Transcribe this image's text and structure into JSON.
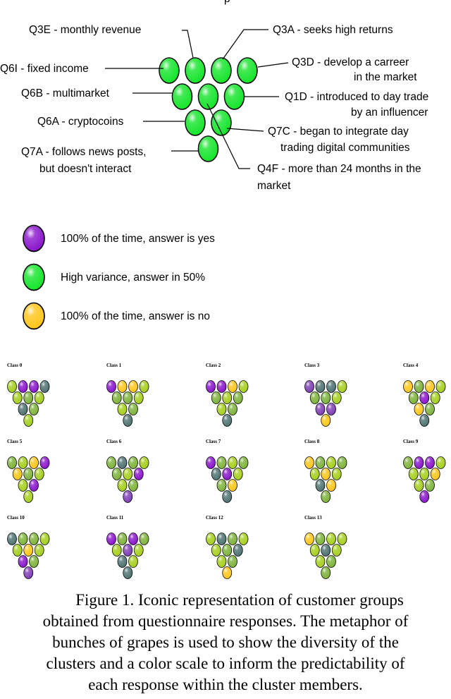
{
  "colors": {
    "purple": "#8b16cc",
    "violet": "#7f3fb6",
    "green": "#16e52c",
    "lime": "#a5cf1d",
    "olive": "#7eb33a",
    "slate": "#4f7373",
    "yellow": "#ffc61a",
    "outline": "#000000"
  },
  "header_fragment": "p",
  "questions": {
    "q3e": "Q3E - monthly revenue",
    "q3a": "Q3A - seeks high returns",
    "q6i": "Q6I - fixed income",
    "q3d": [
      "Q3D - develop a carreer",
      "in the market"
    ],
    "q6b": "Q6B - multimarket",
    "q1d": [
      "Q1D - introduced to day trade",
      "by an influencer"
    ],
    "q6a": "Q6A - cryptocoins",
    "q7c": [
      "Q7C - began to integrate day",
      "trading digital communities"
    ],
    "q7a": [
      "Q7A - follows news posts,",
      "but doesn't interact"
    ],
    "q4f": [
      "Q4F - more than 24 months in the",
      "market"
    ]
  },
  "legend": [
    {
      "color": "purple",
      "text": "100% of the time, answer is yes"
    },
    {
      "color": "green",
      "text": "High variance, answer in 50%"
    },
    {
      "color": "yellow",
      "text": "100% of the time, answer is no"
    }
  ],
  "classes": [
    {
      "label": "Class 0",
      "grapes": [
        "lime",
        "purple",
        "purple",
        "slate",
        "lime",
        "olive",
        "lime",
        "slate",
        "olive",
        "lime"
      ]
    },
    {
      "label": "Class 1",
      "grapes": [
        "purple",
        "yellow",
        "yellow",
        "lime",
        "olive",
        "olive",
        "lime",
        "lime",
        "olive",
        "slate"
      ]
    },
    {
      "label": "Class 2",
      "grapes": [
        "purple",
        "purple",
        "yellow",
        "lime",
        "olive",
        "lime",
        "olive",
        "lime",
        "olive",
        "slate"
      ]
    },
    {
      "label": "Class 3",
      "grapes": [
        "violet",
        "slate",
        "slate",
        "lime",
        "olive",
        "olive",
        "lime",
        "violet",
        "violet",
        "yellow"
      ]
    },
    {
      "label": "Class 4",
      "grapes": [
        "yellow",
        "olive",
        "yellow",
        "lime",
        "olive",
        "purple",
        "lime",
        "yellow",
        "olive",
        "slate"
      ]
    },
    {
      "label": "Class 5",
      "grapes": [
        "olive",
        "lime",
        "yellow",
        "purple",
        "yellow",
        "olive",
        "lime",
        "lime",
        "purple",
        "lime"
      ]
    },
    {
      "label": "Class 6",
      "grapes": [
        "olive",
        "slate",
        "olive",
        "lime",
        "olive",
        "lime",
        "purple",
        "lime",
        "olive",
        "violet"
      ]
    },
    {
      "label": "Class 7",
      "grapes": [
        "purple",
        "olive",
        "lime",
        "olive",
        "slate",
        "purple",
        "lime",
        "olive",
        "yellow",
        "slate"
      ]
    },
    {
      "label": "Class 8",
      "grapes": [
        "yellow",
        "olive",
        "lime",
        "olive",
        "lime",
        "yellow",
        "lime",
        "slate",
        "yellow",
        "olive"
      ]
    },
    {
      "label": "Class 9",
      "grapes": [
        "olive",
        "purple",
        "purple",
        "lime",
        "lime",
        "lime",
        "yellow",
        "lime",
        "olive",
        "purple"
      ]
    },
    {
      "label": "Class 10",
      "grapes": [
        "slate",
        "olive",
        "olive",
        "lime",
        "lime",
        "yellow",
        "lime",
        "purple",
        "olive",
        "violet"
      ]
    },
    {
      "label": "Class 11",
      "grapes": [
        "purple",
        "olive",
        "purple",
        "olive",
        "lime",
        "violet",
        "lime",
        "slate",
        "lime",
        "slate"
      ]
    },
    {
      "label": "Class 12",
      "grapes": [
        "lime",
        "slate",
        "olive",
        "lime",
        "lime",
        "olive",
        "slate",
        "lime",
        "olive",
        "yellow"
      ]
    },
    {
      "label": "Class 13",
      "grapes": [
        "yellow",
        "olive",
        "lime",
        "lime",
        "lime",
        "slate",
        "lime",
        "lime",
        "olive",
        "olive"
      ]
    }
  ],
  "caption": [
    "Figure 1. Iconic representation of customer groups",
    "obtained from questionnaire responses. The metaphor of",
    "bunches of grapes is used to show the diversity of the",
    "clusters and a color scale to inform the predictability of",
    "each response within the cluster members."
  ]
}
